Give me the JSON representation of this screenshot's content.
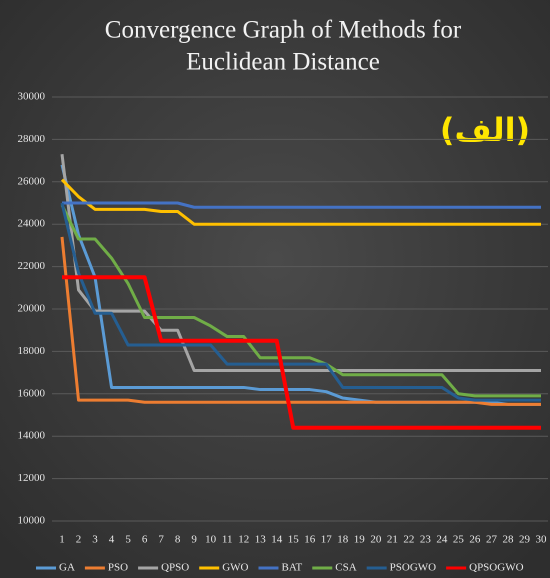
{
  "chart_data": {
    "type": "line",
    "title": [
      "Convergence Graph of Methods for",
      "Euclidean Distance"
    ],
    "annotation": "(الف)",
    "categories": [
      1,
      2,
      3,
      4,
      5,
      6,
      7,
      8,
      9,
      10,
      11,
      12,
      13,
      14,
      15,
      16,
      17,
      18,
      19,
      20,
      21,
      22,
      23,
      24,
      25,
      26,
      27,
      28,
      29,
      30
    ],
    "ylim": [
      10000,
      30000
    ],
    "yticks": [
      10000,
      12000,
      14000,
      16000,
      18000,
      20000,
      22000,
      24000,
      26000,
      28000,
      30000
    ],
    "grid": true,
    "series": [
      {
        "name": "GA",
        "color": "#5b9bd5",
        "values": [
          26800,
          23500,
          21500,
          16300,
          16300,
          16300,
          16300,
          16300,
          16300,
          16300,
          16300,
          16300,
          16200,
          16200,
          16200,
          16200,
          16100,
          15800,
          15700,
          15600,
          15600,
          15600,
          15600,
          15600,
          15600,
          15600,
          15600,
          15500,
          15500,
          15500
        ]
      },
      {
        "name": "PSO",
        "color": "#ed7d31",
        "values": [
          23400,
          15700,
          15700,
          15700,
          15700,
          15600,
          15600,
          15600,
          15600,
          15600,
          15600,
          15600,
          15600,
          15600,
          15600,
          15600,
          15600,
          15600,
          15600,
          15600,
          15600,
          15600,
          15600,
          15600,
          15600,
          15600,
          15500,
          15500,
          15500,
          15500
        ]
      },
      {
        "name": "QPSO",
        "color": "#a5a5a5",
        "values": [
          27300,
          20900,
          19900,
          19900,
          19900,
          19900,
          19000,
          19000,
          17100,
          17100,
          17100,
          17100,
          17100,
          17100,
          17100,
          17100,
          17100,
          17100,
          17100,
          17100,
          17100,
          17100,
          17100,
          17100,
          17100,
          17100,
          17100,
          17100,
          17100,
          17100
        ]
      },
      {
        "name": "GWO",
        "color": "#ffc000",
        "values": [
          26100,
          25300,
          24700,
          24700,
          24700,
          24700,
          24600,
          24600,
          24000,
          24000,
          24000,
          24000,
          24000,
          24000,
          24000,
          24000,
          24000,
          24000,
          24000,
          24000,
          24000,
          24000,
          24000,
          24000,
          24000,
          24000,
          24000,
          24000,
          24000,
          24000
        ]
      },
      {
        "name": "BAT",
        "color": "#4472c4",
        "values": [
          25000,
          25000,
          25000,
          25000,
          25000,
          25000,
          25000,
          25000,
          24800,
          24800,
          24800,
          24800,
          24800,
          24800,
          24800,
          24800,
          24800,
          24800,
          24800,
          24800,
          24800,
          24800,
          24800,
          24800,
          24800,
          24800,
          24800,
          24800,
          24800,
          24800
        ]
      },
      {
        "name": "CSA",
        "color": "#70ad47",
        "values": [
          24900,
          23300,
          23300,
          22400,
          21200,
          19600,
          19600,
          19600,
          19600,
          19200,
          18700,
          18700,
          17700,
          17700,
          17700,
          17700,
          17400,
          16900,
          16900,
          16900,
          16900,
          16900,
          16900,
          16900,
          16000,
          15900,
          15900,
          15900,
          15900,
          15900
        ]
      },
      {
        "name": "PSOGWO",
        "color": "#255e91",
        "values": [
          25000,
          21700,
          19800,
          19800,
          18300,
          18300,
          18300,
          18300,
          18300,
          18300,
          17400,
          17400,
          17400,
          17400,
          17400,
          17400,
          17400,
          16300,
          16300,
          16300,
          16300,
          16300,
          16300,
          16300,
          15800,
          15700,
          15700,
          15700,
          15700,
          15700
        ]
      },
      {
        "name": "QPSOGWO",
        "color": "#ff0000",
        "values": [
          21500,
          21500,
          21500,
          21500,
          21500,
          21500,
          18500,
          18500,
          18500,
          18500,
          18500,
          18500,
          18500,
          18500,
          14400,
          14400,
          14400,
          14400,
          14400,
          14400,
          14400,
          14400,
          14400,
          14400,
          14400,
          14400,
          14400,
          14400,
          14400,
          14400
        ]
      }
    ]
  }
}
